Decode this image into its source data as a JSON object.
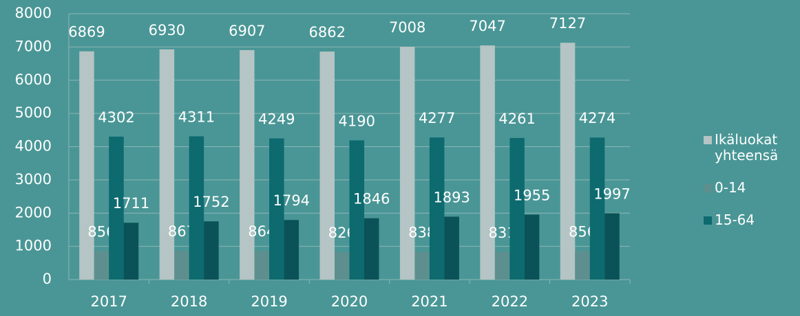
{
  "chart_data": {
    "type": "bar",
    "categories": [
      "2017",
      "2018",
      "2019",
      "2020",
      "2021",
      "2022",
      "2023"
    ],
    "series": [
      {
        "name": "Ikäluokat yhteensä",
        "color": "#b5c4c4",
        "values": [
          6869,
          6930,
          6907,
          6862,
          7008,
          7047,
          7127
        ]
      },
      {
        "name": "0-14",
        "color": "#5e8f8f",
        "values": [
          856,
          867,
          864,
          826,
          838,
          831,
          856
        ]
      },
      {
        "name": "15-64",
        "color": "#0d6a6e",
        "values": [
          4302,
          4311,
          4249,
          4190,
          4277,
          4261,
          4274
        ]
      },
      {
        "name": null,
        "color": "#0a5258",
        "values": [
          1711,
          1752,
          1794,
          1846,
          1893,
          1955,
          1997
        ]
      }
    ],
    "ylim": [
      0,
      8000
    ],
    "yticks": [
      0,
      1000,
      2000,
      3000,
      4000,
      5000,
      6000,
      7000,
      8000
    ],
    "grid": true,
    "legend": "right"
  }
}
